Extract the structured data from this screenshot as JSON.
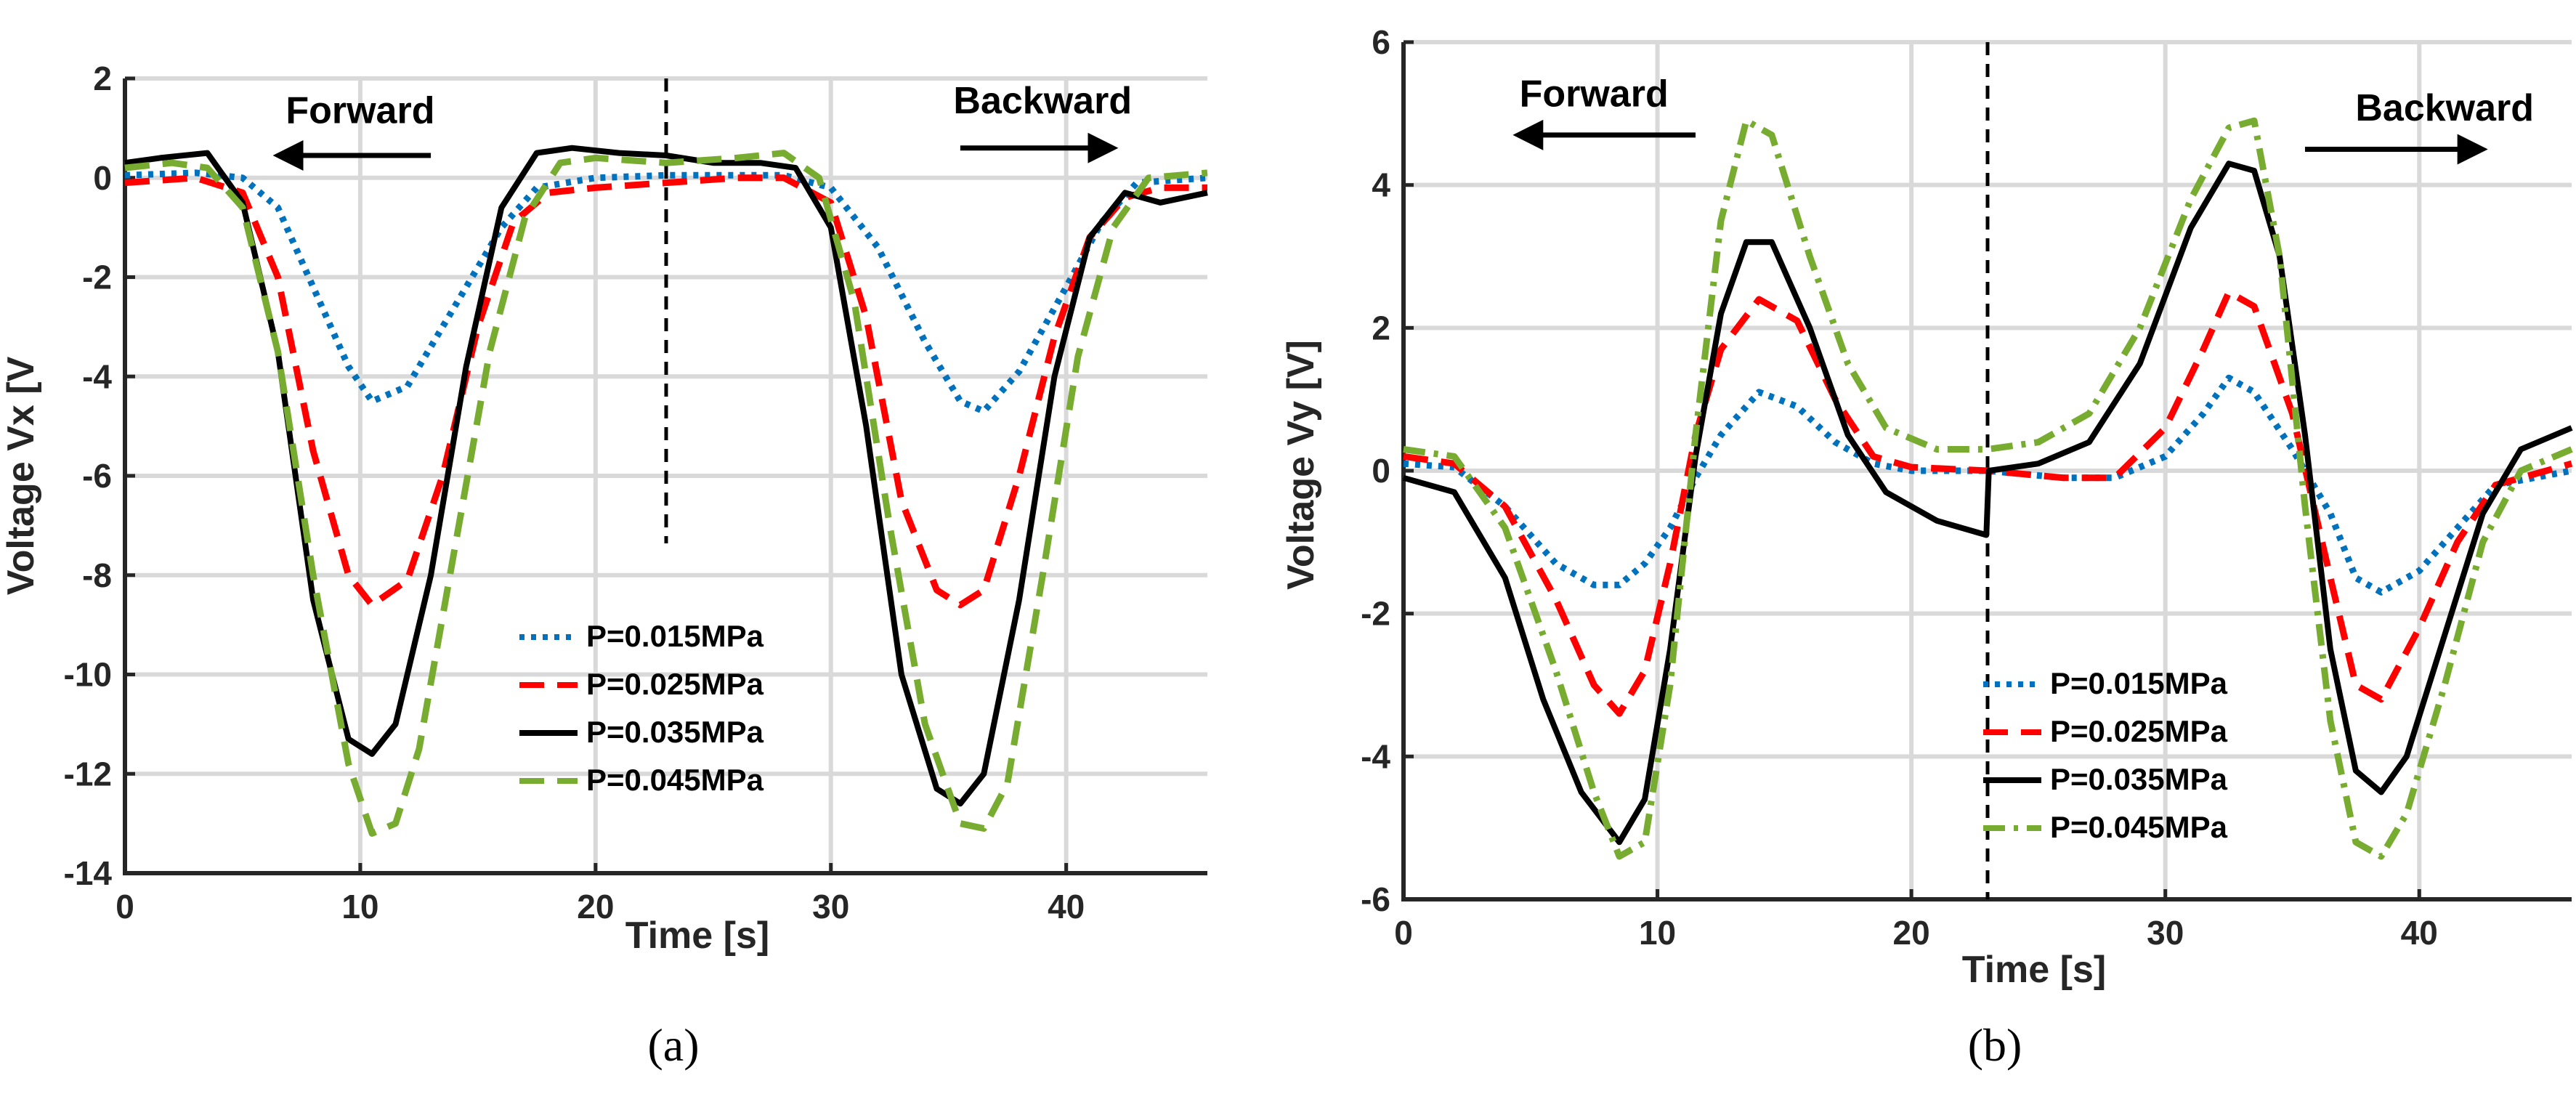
{
  "chart_data": [
    {
      "type": "line",
      "panel_label": "(a)",
      "xlabel": "Time [s]",
      "ylabel": "Voltage Vx [V",
      "xlim": [
        0,
        46
      ],
      "ylim": [
        -14,
        2
      ],
      "xticks": [
        0,
        10,
        20,
        30,
        40
      ],
      "yticks": [
        2,
        0,
        -2,
        -4,
        -6,
        -8,
        -10,
        -12,
        -14
      ],
      "grid": true,
      "divider_x": 23,
      "legend_position": "lower-right",
      "annotations": [
        {
          "text": "Forward",
          "x": 10,
          "y": 1.1,
          "arrow": "left",
          "arrow_from": 13,
          "arrow_to": 6.5,
          "arrow_y": 0.45
        },
        {
          "text": "Backward",
          "x": 39,
          "y": 1.3,
          "arrow": "right",
          "arrow_from": 35.5,
          "arrow_to": 42,
          "arrow_y": 0.6
        }
      ],
      "series": [
        {
          "name": "P=0.015MPa",
          "color": "#0072BD",
          "style": "dotted",
          "x": [
            0,
            3,
            5,
            6.5,
            8,
            9.5,
            10.5,
            12,
            14,
            16,
            17.5,
            20,
            23,
            26,
            28,
            30,
            32,
            34,
            35.5,
            36.5,
            38,
            40,
            41.5,
            43,
            46
          ],
          "y": [
            0.05,
            0.1,
            0,
            -0.6,
            -2.2,
            -3.8,
            -4.5,
            -4.2,
            -2.6,
            -1.0,
            -0.2,
            0,
            0.05,
            0.05,
            0.05,
            -0.2,
            -1.4,
            -3.3,
            -4.5,
            -4.7,
            -3.9,
            -2.2,
            -0.9,
            -0.1,
            0
          ]
        },
        {
          "name": "P=0.025MPa",
          "color": "#FF0000",
          "style": "dashed",
          "x": [
            0,
            3,
            5,
            6.5,
            8,
            9.5,
            10.5,
            12,
            13.5,
            15,
            16.5,
            18,
            20,
            23,
            26,
            28,
            30,
            31.5,
            33,
            34.5,
            35.5,
            36.5,
            38,
            39.5,
            41,
            42.5,
            44,
            46
          ],
          "y": [
            -0.1,
            0,
            -0.3,
            -2.0,
            -5.5,
            -8.0,
            -8.6,
            -8.1,
            -6.0,
            -3.0,
            -0.9,
            -0.3,
            -0.2,
            -0.1,
            0,
            0,
            -0.5,
            -2.8,
            -6.5,
            -8.3,
            -8.6,
            -8.3,
            -6.0,
            -3.2,
            -1.2,
            -0.4,
            -0.2,
            -0.2
          ]
        },
        {
          "name": "P=0.035MPa",
          "color": "#000000",
          "style": "solid",
          "x": [
            0,
            1.5,
            3.5,
            5,
            6.5,
            8,
            9.5,
            10.5,
            11.5,
            13,
            14.5,
            16,
            17.5,
            19,
            21,
            23,
            25,
            27,
            28.5,
            30,
            31.5,
            33,
            34.5,
            35.5,
            36.5,
            38,
            39.5,
            41,
            42.5,
            44,
            46
          ],
          "y": [
            0.3,
            0.4,
            0.5,
            -0.5,
            -3.5,
            -8.5,
            -11.3,
            -11.6,
            -11.0,
            -8.0,
            -3.8,
            -0.6,
            0.5,
            0.6,
            0.5,
            0.45,
            0.3,
            0.3,
            0.2,
            -1.0,
            -5.0,
            -10.0,
            -12.3,
            -12.6,
            -12.0,
            -8.5,
            -4.0,
            -1.2,
            -0.3,
            -0.5,
            -0.3
          ]
        },
        {
          "name": "P=0.045MPa",
          "color": "#77AC30",
          "style": "dashed",
          "x": [
            0,
            2,
            3.5,
            5,
            6.5,
            8,
            9.5,
            10.5,
            11.5,
            12.5,
            14,
            15.5,
            17,
            18.5,
            20,
            23,
            26,
            28,
            29.5,
            31,
            32.5,
            34,
            35.5,
            36.5,
            37.5,
            39,
            40.5,
            42,
            43.5,
            46
          ],
          "y": [
            0.2,
            0.3,
            0.2,
            -0.6,
            -3.5,
            -8.0,
            -11.8,
            -13.2,
            -13.0,
            -11.5,
            -7.5,
            -3.5,
            -0.8,
            0.3,
            0.4,
            0.3,
            0.4,
            0.5,
            0,
            -2.5,
            -7.0,
            -11.0,
            -13.0,
            -13.1,
            -12.2,
            -8.0,
            -3.6,
            -1.0,
            0,
            0.1
          ]
        }
      ]
    },
    {
      "type": "line",
      "panel_label": "(b)",
      "xlabel": "Time [s]",
      "ylabel": "Voltage Vy [V]",
      "xlim": [
        0,
        46
      ],
      "ylim": [
        -6,
        6
      ],
      "xticks": [
        0,
        10,
        20,
        30,
        40
      ],
      "yticks": [
        6,
        4,
        2,
        0,
        -2,
        -4,
        -6
      ],
      "grid": true,
      "divider_x": 23,
      "legend_position": "lower-right",
      "annotations": [
        {
          "text": "Forward",
          "x": 7.5,
          "y": 5.1,
          "arrow": "left",
          "arrow_from": 11.5,
          "arrow_to": 4.5,
          "arrow_y": 4.7
        },
        {
          "text": "Backward",
          "x": 41,
          "y": 4.9,
          "arrow": "right",
          "arrow_from": 35.5,
          "arrow_to": 42.5,
          "arrow_y": 4.5
        }
      ],
      "series": [
        {
          "name": "P=0.015MPa",
          "color": "#0072BD",
          "style": "dotted",
          "x": [
            0,
            2,
            4,
            6,
            7.5,
            8.5,
            9.5,
            10.5,
            11.5,
            12.5,
            14,
            15.5,
            17,
            18.5,
            20,
            23,
            26,
            28,
            30,
            31.5,
            32.5,
            33.5,
            35,
            36.5,
            37.5,
            38.5,
            40,
            41.5,
            43,
            46
          ],
          "y": [
            0.1,
            0.05,
            -0.5,
            -1.3,
            -1.6,
            -1.6,
            -1.3,
            -0.8,
            -0.1,
            0.5,
            1.1,
            0.9,
            0.4,
            0.1,
            0,
            0,
            -0.1,
            -0.1,
            0.2,
            0.8,
            1.3,
            1.1,
            0.3,
            -0.6,
            -1.5,
            -1.7,
            -1.4,
            -0.8,
            -0.2,
            0
          ]
        },
        {
          "name": "P=0.025MPa",
          "color": "#FF0000",
          "style": "dashed",
          "x": [
            0,
            2,
            4,
            6,
            7.5,
            8.5,
            9.5,
            10.5,
            11.5,
            12.5,
            14,
            15.5,
            17,
            18.5,
            20,
            23,
            26,
            28,
            30,
            31.5,
            32.5,
            33.5,
            35,
            36.5,
            37.5,
            38.5,
            40,
            41.5,
            43,
            46
          ],
          "y": [
            0.2,
            0.1,
            -0.5,
            -1.8,
            -3.0,
            -3.4,
            -2.8,
            -1.3,
            0.5,
            1.7,
            2.4,
            2.1,
            1.0,
            0.2,
            0.05,
            0,
            -0.1,
            -0.1,
            0.6,
            1.7,
            2.5,
            2.3,
            0.8,
            -1.5,
            -3.0,
            -3.2,
            -2.2,
            -1.0,
            -0.2,
            0.1
          ]
        },
        {
          "name": "P=0.035MPa",
          "color": "#000000",
          "style": "solid",
          "x": [
            0,
            2,
            4,
            5.5,
            7,
            8.5,
            9.5,
            10.5,
            11.5,
            12.5,
            13.5,
            14.5,
            16,
            17.5,
            19,
            21,
            22.95,
            23.05,
            25,
            27,
            29,
            31,
            32.5,
            33.5,
            34.5,
            35.5,
            36.5,
            37.5,
            38.5,
            39.5,
            41,
            42.5,
            44,
            46
          ],
          "y": [
            -0.1,
            -0.3,
            -1.5,
            -3.2,
            -4.5,
            -5.2,
            -4.6,
            -2.5,
            0.2,
            2.2,
            3.2,
            3.2,
            2.0,
            0.5,
            -0.3,
            -0.7,
            -0.9,
            0,
            0.1,
            0.4,
            1.5,
            3.4,
            4.3,
            4.2,
            3.0,
            0.5,
            -2.5,
            -4.2,
            -4.5,
            -4.0,
            -2.3,
            -0.6,
            0.3,
            0.6
          ]
        },
        {
          "name": "P=0.045MPa",
          "color": "#77AC30",
          "style": "dashdot",
          "x": [
            0,
            2,
            4,
            6,
            7.5,
            8.5,
            9.5,
            10.5,
            11.5,
            12.5,
            13.5,
            14.5,
            16,
            17.5,
            19,
            21,
            23,
            25,
            27,
            29,
            31,
            32.5,
            33.5,
            34.5,
            35.5,
            36.5,
            37.5,
            38.5,
            39.5,
            41,
            42.5,
            44,
            46
          ],
          "y": [
            0.3,
            0.2,
            -0.8,
            -2.8,
            -4.5,
            -5.4,
            -5.2,
            -3.0,
            0.5,
            3.5,
            4.9,
            4.7,
            3.0,
            1.5,
            0.6,
            0.3,
            0.3,
            0.4,
            0.8,
            2.0,
            3.8,
            4.8,
            4.9,
            3.0,
            -0.5,
            -3.5,
            -5.2,
            -5.4,
            -4.8,
            -3.0,
            -1.0,
            0,
            0.3
          ]
        }
      ]
    }
  ]
}
